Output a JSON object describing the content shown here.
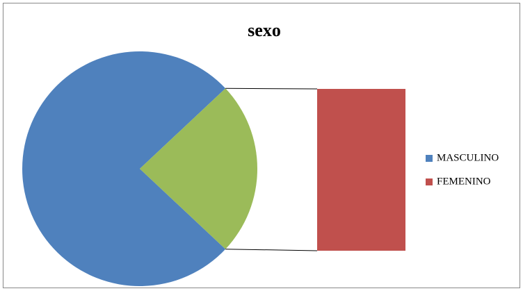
{
  "chart_data": {
    "type": "pie",
    "title": "sexo",
    "categories": [
      "MASCULINO",
      "FEMENINO"
    ],
    "values": [
      76,
      24
    ],
    "colors": [
      "#4f81bd",
      "#c0504d"
    ],
    "bar_of_pie": true,
    "other_color": "#9bbb59",
    "legend": "right"
  }
}
